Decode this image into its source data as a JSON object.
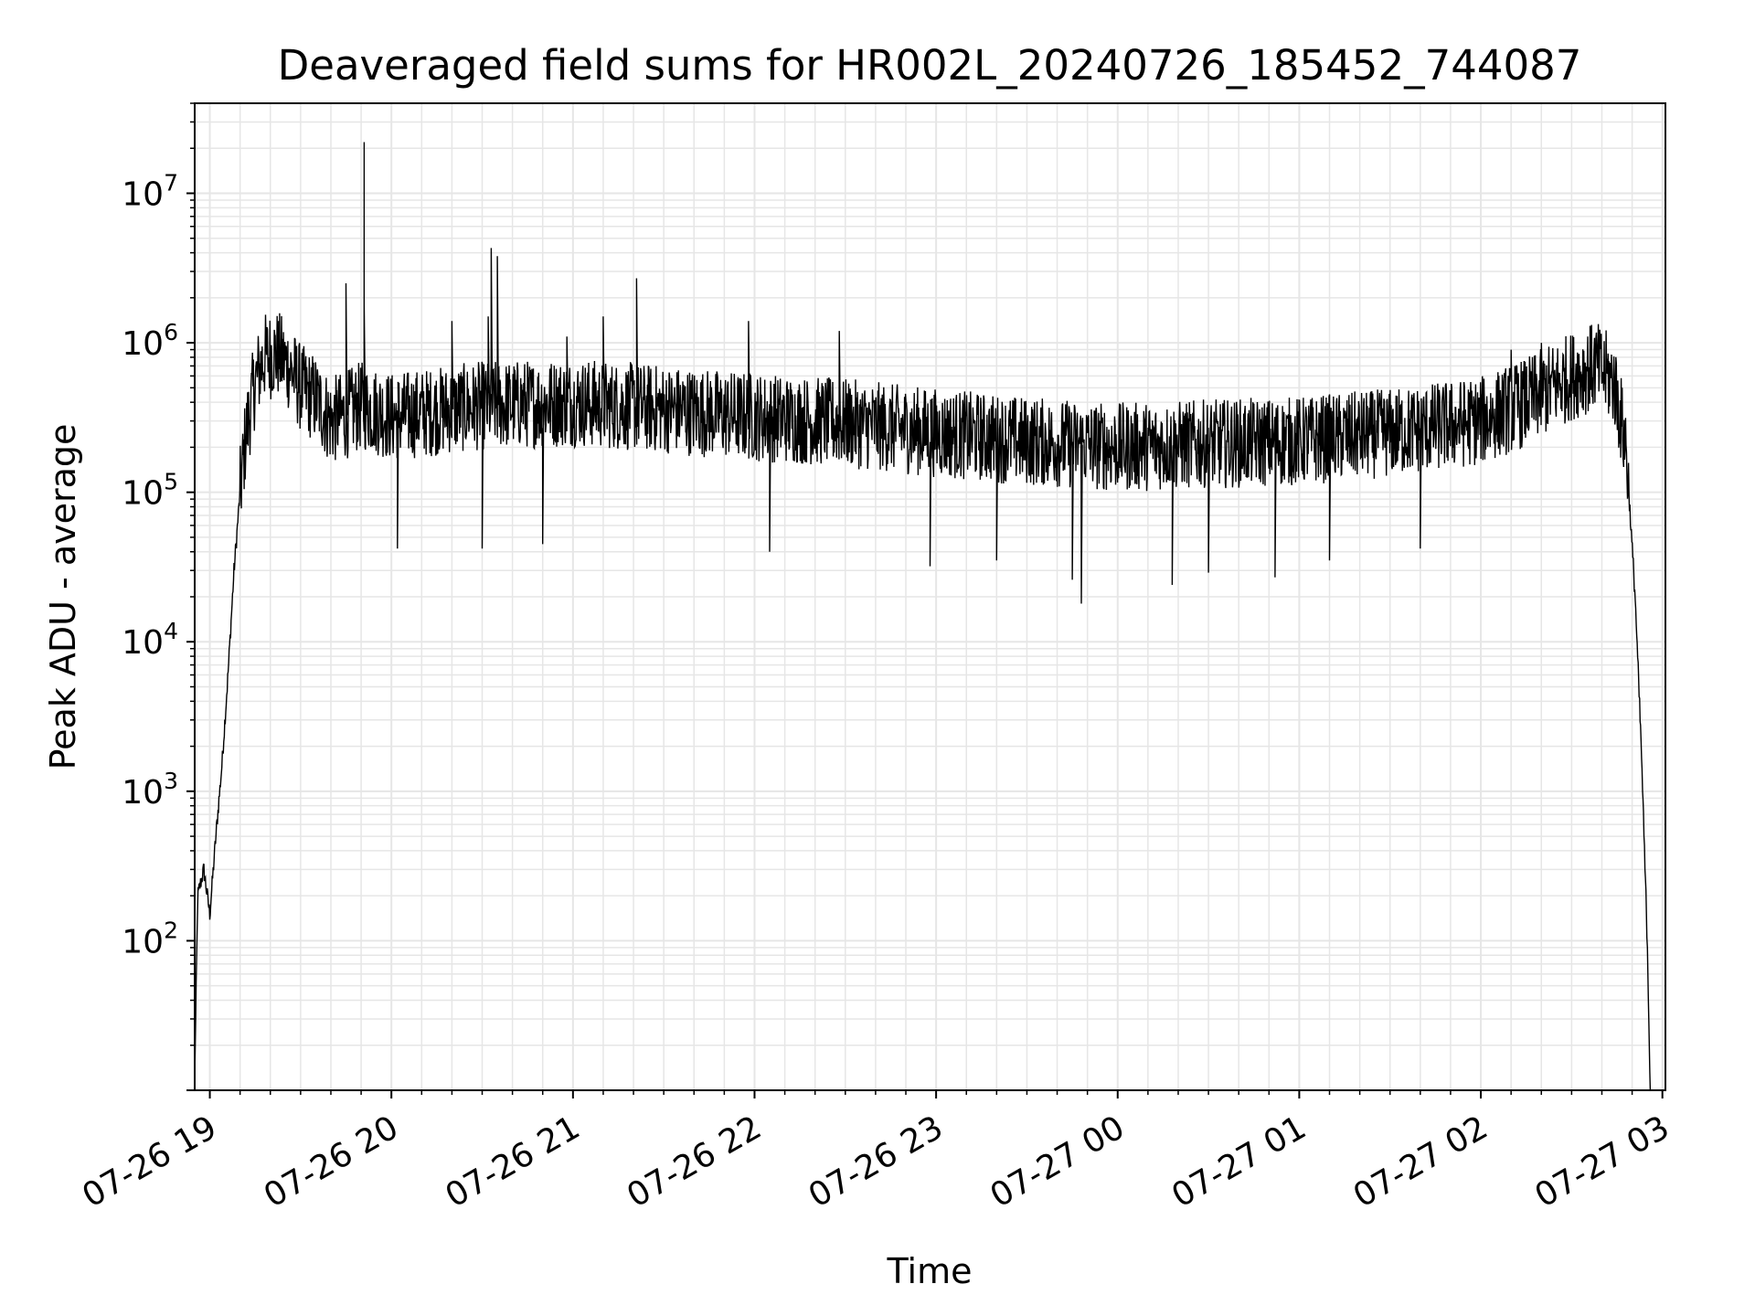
{
  "chart_data": {
    "type": "line",
    "title": "Deaveraged field sums for HR002L_20240726_185452_744087",
    "xlabel": "Time",
    "ylabel": "Peak ADU - average",
    "xscale": "time",
    "yscale": "log",
    "xlim": [
      "2024-07-26 18:55",
      "2024-07-27 03:01"
    ],
    "ylim": [
      10,
      40000000
    ],
    "xticks": [
      "07-26 19",
      "07-26 20",
      "07-26 21",
      "07-26 22",
      "07-26 23",
      "07-27 00",
      "07-27 01",
      "07-27 02",
      "07-27 03"
    ],
    "yticks": [
      {
        "base": "10",
        "exp": "2"
      },
      {
        "base": "10",
        "exp": "3"
      },
      {
        "base": "10",
        "exp": "4"
      },
      {
        "base": "10",
        "exp": "5"
      },
      {
        "base": "10",
        "exp": "6"
      },
      {
        "base": "10",
        "exp": "7"
      }
    ],
    "grid": "major and minor",
    "line_color": "#000000",
    "series": [
      {
        "points": [
          [
            "2024-07-26 18:55",
            12
          ],
          [
            "2024-07-26 18:56",
            200
          ],
          [
            "2024-07-26 18:58",
            300
          ],
          [
            "2024-07-26 19:00",
            150
          ],
          [
            "2024-07-26 19:02",
            500
          ],
          [
            "2024-07-26 19:04",
            1500
          ],
          [
            "2024-07-26 19:06",
            6000
          ],
          [
            "2024-07-26 19:08",
            30000
          ],
          [
            "2024-07-26 19:10",
            100000
          ],
          [
            "2024-07-26 19:12",
            250000
          ],
          [
            "2024-07-26 19:15",
            550000
          ],
          [
            "2024-07-26 19:18",
            800000
          ],
          [
            "2024-07-26 19:22",
            850000
          ],
          [
            "2024-07-26 19:26",
            700000
          ],
          [
            "2024-07-26 19:30",
            500000
          ],
          [
            "2024-07-26 19:35",
            420000
          ],
          [
            "2024-07-26 19:40",
            300000
          ],
          [
            "2024-07-26 19:45",
            330000
          ],
          [
            "2024-07-26 19:50",
            380000
          ],
          [
            "2024-07-26 19:55",
            350000
          ],
          [
            "2024-07-26 20:00",
            320000
          ],
          [
            "2024-07-26 20:30",
            380000
          ],
          [
            "2024-07-26 21:00",
            400000
          ],
          [
            "2024-07-26 21:30",
            360000
          ],
          [
            "2024-07-26 22:00",
            320000
          ],
          [
            "2024-07-26 22:30",
            290000
          ],
          [
            "2024-07-26 23:00",
            250000
          ],
          [
            "2024-07-26 23:30",
            220000
          ],
          [
            "2024-07-27 00:00",
            200000
          ],
          [
            "2024-07-27 00:30",
            210000
          ],
          [
            "2024-07-27 01:00",
            220000
          ],
          [
            "2024-07-27 01:30",
            250000
          ],
          [
            "2024-07-27 02:00",
            300000
          ],
          [
            "2024-07-27 02:15",
            400000
          ],
          [
            "2024-07-27 02:30",
            600000
          ],
          [
            "2024-07-27 02:38",
            700000
          ],
          [
            "2024-07-27 02:44",
            550000
          ],
          [
            "2024-07-27 02:48",
            200000
          ],
          [
            "2024-07-27 02:51",
            20000
          ],
          [
            "2024-07-27 02:53",
            2000
          ],
          [
            "2024-07-27 02:55",
            100
          ],
          [
            "2024-07-27 02:56",
            10
          ]
        ],
        "noise_log10_spread": 0.6,
        "spikes": [
          [
            "2024-07-26 19:45",
            2500000
          ],
          [
            "2024-07-26 19:51",
            22000000
          ],
          [
            "2024-07-26 19:51",
            1800000
          ],
          [
            "2024-07-26 20:20",
            1400000
          ],
          [
            "2024-07-26 20:32",
            1500000
          ],
          [
            "2024-07-26 20:33",
            4300000
          ],
          [
            "2024-07-26 20:35",
            3800000
          ],
          [
            "2024-07-26 20:58",
            1100000
          ],
          [
            "2024-07-26 21:10",
            1500000
          ],
          [
            "2024-07-26 21:21",
            2700000
          ],
          [
            "2024-07-26 21:58",
            1400000
          ],
          [
            "2024-07-26 22:28",
            1200000
          ],
          [
            "2024-07-27 02:10",
            900000
          ],
          [
            "2024-07-27 02:20",
            1000000
          ]
        ],
        "dips": [
          [
            "2024-07-26 20:02",
            42000
          ],
          [
            "2024-07-26 20:30",
            42000
          ],
          [
            "2024-07-26 20:50",
            45000
          ],
          [
            "2024-07-26 22:05",
            40000
          ],
          [
            "2024-07-26 22:58",
            32000
          ],
          [
            "2024-07-26 23:20",
            35000
          ],
          [
            "2024-07-26 23:45",
            26000
          ],
          [
            "2024-07-26 23:48",
            18000
          ],
          [
            "2024-07-27 00:18",
            24000
          ],
          [
            "2024-07-27 00:30",
            29000
          ],
          [
            "2024-07-27 00:52",
            27000
          ],
          [
            "2024-07-27 01:10",
            35000
          ],
          [
            "2024-07-27 01:40",
            42000
          ]
        ]
      }
    ]
  }
}
